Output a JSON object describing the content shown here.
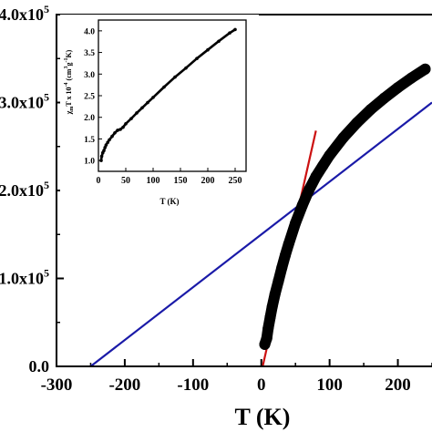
{
  "chart_data": [
    {
      "type": "scatter",
      "xlabel": "T (K)",
      "ylabel": "",
      "xlim": [
        -300,
        250
      ],
      "ylim": [
        0,
        4.0
      ],
      "y_unit_label": "x10",
      "y_unit_exponent": "5",
      "x_ticks": [
        "-300",
        "-200",
        "-100",
        "0",
        "100",
        "200"
      ],
      "x_tick_values": [
        -300,
        -200,
        -100,
        0,
        100,
        200
      ],
      "y_ticks": [
        "0.0",
        "1.0x10",
        "2.0x10",
        "3.0x10",
        "4.0x10"
      ],
      "y_tick_values": [
        0,
        1,
        2,
        3,
        4
      ],
      "series": [
        {
          "marker": "filled-circle",
          "color": "#000000",
          "x": [
            5,
            8,
            10,
            13,
            16,
            20,
            25,
            30,
            35,
            40,
            50,
            60,
            70,
            80,
            90,
            100,
            120,
            140,
            160,
            180,
            200,
            220,
            240
          ],
          "y": [
            0.25,
            0.32,
            0.43,
            0.56,
            0.68,
            0.82,
            0.97,
            1.12,
            1.26,
            1.39,
            1.63,
            1.83,
            2.01,
            2.16,
            2.28,
            2.4,
            2.6,
            2.77,
            2.92,
            3.05,
            3.17,
            3.28,
            3.38
          ]
        }
      ],
      "fit_lines": [
        {
          "color": "#cc1111",
          "x": [
            2,
            80
          ],
          "y": [
            0.0,
            2.68
          ]
        },
        {
          "color": "#1a1aa8",
          "x": [
            -250,
            250
          ],
          "y": [
            0.0,
            3.0
          ]
        }
      ]
    },
    {
      "type": "scatter",
      "xlabel": "T (K)",
      "ylabel": "χmT x 10⁻⁴ (cm³g⁻¹K)",
      "xlim": [
        0,
        270
      ],
      "ylim": [
        0.75,
        4.25
      ],
      "x_ticks": [
        "0",
        "50",
        "100",
        "150",
        "200",
        "250"
      ],
      "x_tick_values": [
        0,
        50,
        100,
        150,
        200,
        250
      ],
      "y_ticks": [
        "1.0",
        "1.5",
        "2.0",
        "2.5",
        "3.0",
        "3.5",
        "4.0"
      ],
      "y_tick_values": [
        1.0,
        1.5,
        2.0,
        2.5,
        3.0,
        3.5,
        4.0
      ],
      "series": [
        {
          "marker": "filled-circle",
          "color": "#000000",
          "x": [
            5,
            6,
            8,
            10,
            12,
            14,
            17,
            20,
            25,
            30,
            35,
            40,
            45,
            50,
            60,
            70,
            80,
            90,
            100,
            120,
            140,
            160,
            180,
            200,
            220,
            240,
            250
          ],
          "y": [
            1.0,
            1.1,
            1.18,
            1.23,
            1.3,
            1.36,
            1.42,
            1.48,
            1.56,
            1.64,
            1.7,
            1.72,
            1.77,
            1.85,
            1.97,
            2.1,
            2.22,
            2.34,
            2.46,
            2.7,
            2.93,
            3.14,
            3.36,
            3.56,
            3.76,
            3.95,
            4.03
          ]
        }
      ]
    }
  ]
}
